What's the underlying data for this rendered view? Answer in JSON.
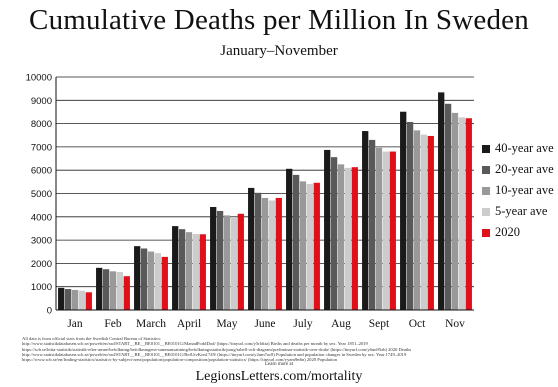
{
  "title": "Cumulative Deaths per Million In Sweden",
  "subtitle": "January–November",
  "chart_data": {
    "type": "bar",
    "title": "Cumulative Deaths per Million In Sweden",
    "subtitle": "January–November",
    "xlabel": "",
    "ylabel": "",
    "ylim": [
      0,
      10000
    ],
    "yticks": [
      "0",
      "1000",
      "2000",
      "3000",
      "4000",
      "5000",
      "6000",
      "7000",
      "8000",
      "9000",
      "10000"
    ],
    "grid": true,
    "legend_position": "right",
    "categories": [
      "Jan",
      "Feb",
      "March",
      "April",
      "May",
      "June",
      "July",
      "Aug",
      "Sept",
      "Oct",
      "Nov"
    ],
    "series": [
      {
        "name": "40-year ave",
        "color": "#1a1a1a",
        "values": [
          950,
          1810,
          2740,
          3600,
          4420,
          5240,
          6060,
          6870,
          7680,
          8510,
          9340
        ]
      },
      {
        "name": "20-year ave",
        "color": "#595959",
        "values": [
          900,
          1750,
          2640,
          3470,
          4250,
          5030,
          5800,
          6560,
          7300,
          8070,
          8850
        ]
      },
      {
        "name": "10-year ave",
        "color": "#999999",
        "values": [
          860,
          1660,
          2510,
          3340,
          4060,
          4810,
          5520,
          6250,
          6960,
          7710,
          8460
        ]
      },
      {
        "name": "5-year ave",
        "color": "#cccccc",
        "values": [
          830,
          1630,
          2440,
          3260,
          3990,
          4700,
          5410,
          6100,
          6800,
          7530,
          8270
        ]
      },
      {
        "name": "2020",
        "color": "#e0101a",
        "values": [
          760,
          1450,
          2280,
          3250,
          4130,
          4810,
          5460,
          6130,
          6800,
          7470,
          8230
        ]
      }
    ]
  },
  "notes": [
    "All data is from official stats from the Swedish Central Bureau of Statistics:",
    "http://www.statistikdatabasen.scb.se/pxweb/en/ssd/START__BE__BE0101__BE0101G/ManadFoddDod/ (https://tinyurl.com/y5rldtia) Births and deaths per month by sex. Year 1851–2019",
    "https://scb.se/hitta-statistik/statistik-efter-amne/befolkning/befolkningens-sammansattning/befolkningsstatistik/pong/tabell-och-diagram/preliminar-statistik-over-doda/ (https://tinyurl.com/y6un95zb) 2020 Deaths",
    "http://www.statistikdatabasen.scb.se/pxweb/en/ssd/START__BE__BE0101__BE0101G/BefUtvKon1749/ (https://tinyurl.com/y2nm7ac8) Population and population changes in Sweden by sex. Year 1749–2019",
    "https://www.scb.se/en/finding-statistics/statistics-by-subject-area/population/population-composition/population-statistics/ (https://tinyurl.com/yyam9n6n) 2020 Population"
  ],
  "learn_more": "Learn more at",
  "site": "LegionsLetters.com/mortality"
}
